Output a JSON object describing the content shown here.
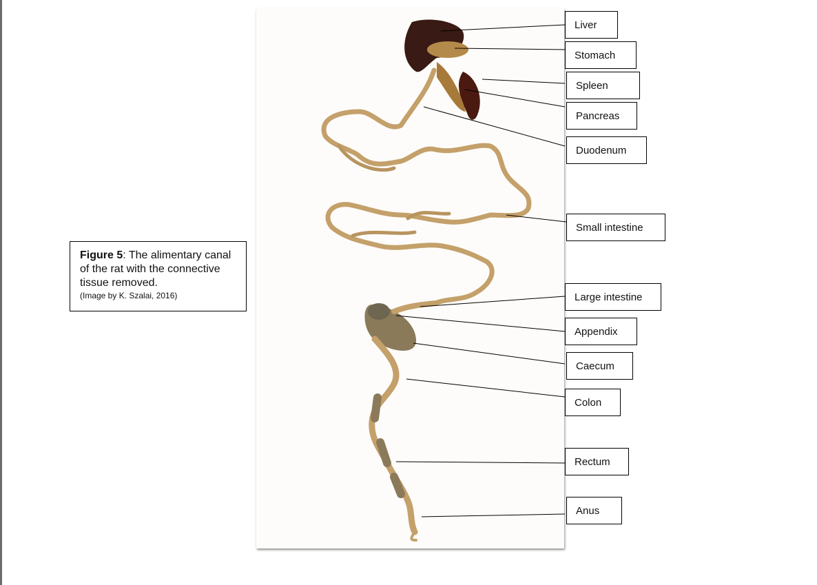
{
  "caption": {
    "figure_label": "Figure 5",
    "text": ": The alimentary canal of the rat with the connective tissue removed.",
    "credit": "(Image by K. Szalai, 2016)"
  },
  "labels": [
    {
      "key": "liver",
      "text": "Liver"
    },
    {
      "key": "stomach",
      "text": "Stomach"
    },
    {
      "key": "spleen",
      "text": "Spleen"
    },
    {
      "key": "pancreas",
      "text": "Pancreas"
    },
    {
      "key": "duodenum",
      "text": "Duodenum"
    },
    {
      "key": "small-intestine",
      "text": "Small intestine"
    },
    {
      "key": "large-intestine",
      "text": "Large intestine"
    },
    {
      "key": "appendix",
      "text": "Appendix"
    },
    {
      "key": "caecum",
      "text": "Caecum"
    },
    {
      "key": "colon",
      "text": "Colon"
    },
    {
      "key": "rectum",
      "text": "Rectum"
    },
    {
      "key": "anus",
      "text": "Anus"
    }
  ],
  "colors": {
    "liver": "#3a1a14",
    "spleen": "#4a1a10",
    "intestine": "#c4a06a",
    "intestine_dark": "#8a7a5a",
    "stomach": "#b48a4a"
  }
}
